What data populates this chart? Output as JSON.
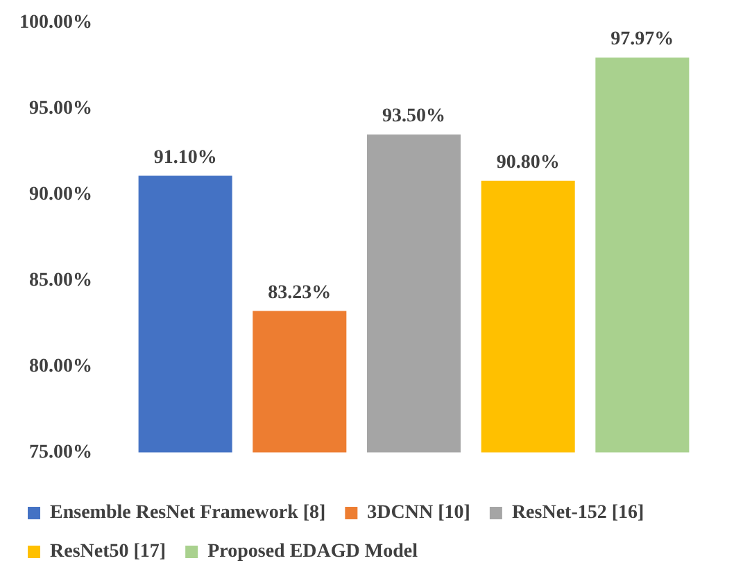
{
  "chart_data": {
    "type": "bar",
    "categories": [
      null
    ],
    "series": [
      {
        "name": "Ensemble ResNet Framework [8]",
        "color": "#4472c4",
        "values": [
          91.1
        ],
        "value_labels": [
          "91.10%"
        ]
      },
      {
        "name": "3DCNN [10]",
        "color": "#ed7d31",
        "values": [
          83.23
        ],
        "value_labels": [
          "83.23%"
        ]
      },
      {
        "name": "ResNet-152 [16]",
        "color": "#a5a5a5",
        "values": [
          93.5
        ],
        "value_labels": [
          "93.50%"
        ]
      },
      {
        "name": "ResNet50 [17]",
        "color": "#ffc000",
        "values": [
          90.8
        ],
        "value_labels": [
          "90.80%"
        ]
      },
      {
        "name": "Proposed EDAGD Model",
        "color": "#a9d18e",
        "values": [
          97.97
        ],
        "value_labels": [
          "97.97%"
        ]
      }
    ],
    "ylim": [
      75,
      100
    ],
    "yticks": [
      {
        "value": 75,
        "label": "75.00%"
      },
      {
        "value": 80,
        "label": "80.00%"
      },
      {
        "value": 85,
        "label": "85.00%"
      },
      {
        "value": 90,
        "label": "90.00%"
      },
      {
        "value": 95,
        "label": "95.00%"
      },
      {
        "value": 100,
        "label": "100.00%"
      }
    ],
    "grid": false,
    "legend": "bottom"
  }
}
